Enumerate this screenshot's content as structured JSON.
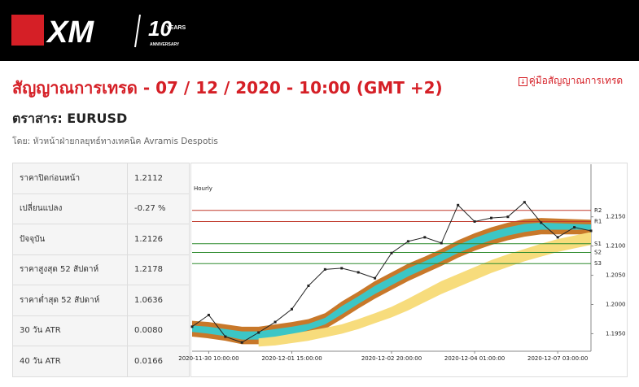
{
  "header": {
    "logo": "XM",
    "badge": "10",
    "badge_text": "YEARS",
    "badge_sub": "ANNIVERSARY"
  },
  "title": "สัญญาณการเทรด - 07 / 12 / 2020 - 10:00 (GMT +2)",
  "guide_link": "คู่มือสัญญาณการเทรด",
  "instrument": "ตราสาร: EURUSD",
  "author": "โดย: หัวหน้าฝ่ายกลยุทธ์ทางเทคนิค Avramis Despotis",
  "table": {
    "rows": [
      [
        "ราคาปิดก่อนหน้า",
        "1.2112"
      ],
      [
        "เปลี่ยนแปลง",
        "-0.27 %"
      ],
      [
        "ปัจจุบัน",
        "1.2126"
      ],
      [
        "ราคาสูงสุด 52 สัปดาห์",
        "1.2178"
      ],
      [
        "ราคาต่ำสุด 52 สัปดาห์",
        "1.0636"
      ],
      [
        "30 วัน ATR",
        "0.0080"
      ],
      [
        "40 วัน ATR",
        "0.0166"
      ]
    ]
  },
  "chart_data": {
    "type": "line",
    "title": "Hourly",
    "categories": [
      null,
      "2020-11-30 10:00:00",
      null,
      null,
      null,
      null,
      "2020-12-01 15:00:00",
      null,
      null,
      null,
      null,
      null,
      "2020-12-02 20:00:00",
      null,
      null,
      null,
      null,
      "2020-12-04 01:00:00",
      null,
      null,
      null,
      null,
      "2020-12-07 03:00:00",
      null,
      null
    ],
    "series": [
      {
        "color": "#222222",
        "values": [
          1.1962,
          1.1982,
          1.1945,
          1.1935,
          1.1952,
          1.197,
          1.1992,
          1.2032,
          1.206,
          1.2062,
          1.2055,
          1.2045,
          1.2088,
          1.2108,
          1.2115,
          1.2105,
          1.217,
          1.2142,
          1.2148,
          1.215,
          1.2175,
          1.214,
          1.2115,
          1.2132,
          1.2126
        ]
      }
    ],
    "bands": [
      {
        "color": "#c8782a",
        "upper": [
          1.1972,
          1.197,
          1.1966,
          1.1962,
          1.1962,
          1.1966,
          1.197,
          1.1975,
          1.1985,
          1.2005,
          1.2022,
          1.204,
          1.2055,
          1.207,
          1.2082,
          1.2095,
          1.211,
          1.2122,
          1.2132,
          1.214,
          1.2146,
          1.2148,
          1.2147,
          1.2146,
          1.2145
        ],
        "lower": [
          1.1945,
          1.1942,
          1.1938,
          1.1932,
          1.1932,
          1.1935,
          1.194,
          1.1948,
          1.1958,
          1.1975,
          1.1993,
          1.201,
          1.2025,
          1.204,
          1.2053,
          1.2066,
          1.208,
          1.2092,
          1.2102,
          1.211,
          1.2116,
          1.212,
          1.212,
          1.212,
          1.212
        ]
      },
      {
        "color": "#3cc6c6",
        "upper": [
          1.1964,
          1.1962,
          1.1958,
          1.1954,
          1.1954,
          1.1958,
          1.1962,
          1.1967,
          1.1977,
          1.1997,
          1.2014,
          1.2032,
          1.2047,
          1.2062,
          1.2074,
          1.2087,
          1.2102,
          1.2114,
          1.2124,
          1.2132,
          1.2138,
          1.214,
          1.2139,
          1.2138,
          1.2137
        ],
        "lower": [
          1.1953,
          1.195,
          1.1946,
          1.194,
          1.194,
          1.1943,
          1.1948,
          1.1956,
          1.1966,
          1.1983,
          1.2001,
          1.2018,
          1.2033,
          1.2048,
          1.2061,
          1.2074,
          1.2088,
          1.21,
          1.211,
          1.2118,
          1.2124,
          1.2128,
          1.2128,
          1.2128,
          1.2128
        ]
      },
      {
        "color": "#f7dc7c",
        "upper": [
          null,
          null,
          null,
          null,
          1.1942,
          1.1945,
          1.195,
          1.1955,
          1.196,
          1.1966,
          1.1975,
          1.1985,
          1.1996,
          1.201,
          1.2025,
          1.204,
          1.2052,
          1.2064,
          1.2076,
          1.2086,
          1.2095,
          1.2104,
          1.2112,
          1.2118,
          1.2124
        ],
        "lower": [
          null,
          null,
          null,
          null,
          1.1928,
          1.193,
          1.1934,
          1.1938,
          1.1944,
          1.195,
          1.1958,
          1.1968,
          1.1978,
          1.199,
          1.2004,
          1.2018,
          1.203,
          1.2042,
          1.2054,
          1.2064,
          1.2074,
          1.2082,
          1.209,
          1.2096,
          1.2102
        ]
      }
    ],
    "levels": [
      {
        "name": "R2",
        "value": 1.2161,
        "color": "#c0392b"
      },
      {
        "name": "R1",
        "value": 1.2142,
        "color": "#c0392b"
      },
      {
        "name": "S1",
        "value": 1.2104,
        "color": "#2e8b2e"
      },
      {
        "name": "S2",
        "value": 1.2089,
        "color": "#2e8b2e"
      },
      {
        "name": "S3",
        "value": 1.207,
        "color": "#2e8b2e"
      }
    ],
    "ylim": [
      1.192,
      1.224
    ],
    "yticks": [
      {
        "value": 1.195,
        "label": "1.1950"
      },
      {
        "value": 1.2,
        "label": "1.2000"
      },
      {
        "value": 1.205,
        "label": "1.2050"
      },
      {
        "value": 1.21,
        "label": "1.2100"
      },
      {
        "value": 1.215,
        "label": "1.2150"
      }
    ]
  }
}
